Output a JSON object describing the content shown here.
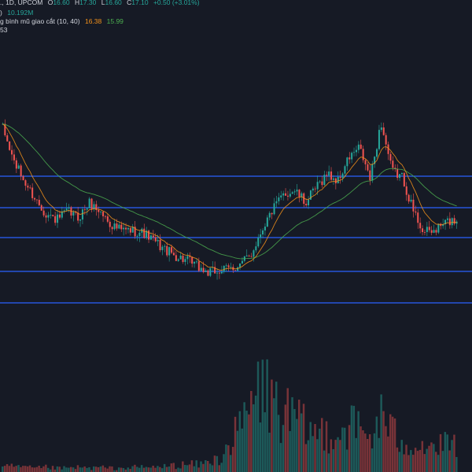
{
  "legend": {
    "symbol_line": {
      "prefix": "., 1D, UPCOM",
      "o_label": "O",
      "o_value": "16.60",
      "h_label": "H",
      "h_value": "17.30",
      "l_label": "L",
      "l_value": "16.60",
      "c_label": "C",
      "c_value": "17.10",
      "change": "+0.50 (+3.01%)"
    },
    "volume_line": {
      "prefix": ")",
      "value": "10.192M"
    },
    "ma_line": {
      "label": "g bình mũ giao cắt (10, 40)",
      "fast_value": "16.38",
      "slow_value": "15.99"
    },
    "fourth_line": "53"
  },
  "colors": {
    "background": "#161a25",
    "up": "#26a69a",
    "down": "#ef5350",
    "hline": "#2962ff",
    "ema_fast": "#f7931a",
    "ema_slow": "#4caf50"
  },
  "chart_data": {
    "type": "candlestick",
    "timeframe": "1D",
    "exchange": "UPCOM",
    "last_candle": {
      "open": 16.6,
      "high": 17.3,
      "low": 16.6,
      "close": 17.1,
      "change": 0.5,
      "change_pct": 3.01
    },
    "volume_last": "10.192M",
    "ema_fast": {
      "period": 10,
      "last": 16.38
    },
    "ema_slow": {
      "period": 40,
      "last": 15.99
    },
    "horizontal_levels_count": 5,
    "price_path_normalized": [
      0.95,
      0.8,
      0.7,
      0.62,
      0.55,
      0.52,
      0.56,
      0.53,
      0.6,
      0.56,
      0.5,
      0.47,
      0.47,
      0.46,
      0.42,
      0.38,
      0.35,
      0.33,
      0.3,
      0.27,
      0.28,
      0.29,
      0.31,
      0.36,
      0.48,
      0.57,
      0.64,
      0.66,
      0.6,
      0.67,
      0.74,
      0.7,
      0.81,
      0.86,
      0.71,
      0.98,
      0.75,
      0.72,
      0.56,
      0.46,
      0.47,
      0.51,
      0.52
    ],
    "volume_profile_normalized": [
      0.05,
      0.06,
      0.05,
      0.04,
      0.05,
      0.04,
      0.04,
      0.05,
      0.04,
      0.05,
      0.04,
      0.04,
      0.05,
      0.05,
      0.05,
      0.06,
      0.07,
      0.08,
      0.08,
      0.1,
      0.14,
      0.3,
      0.45,
      0.7,
      0.9,
      0.75,
      0.6,
      0.55,
      0.45,
      0.4,
      0.45,
      0.4,
      0.5,
      0.45,
      0.35,
      0.6,
      0.4,
      0.35,
      0.3,
      0.3,
      0.25,
      0.28,
      0.3
    ]
  }
}
